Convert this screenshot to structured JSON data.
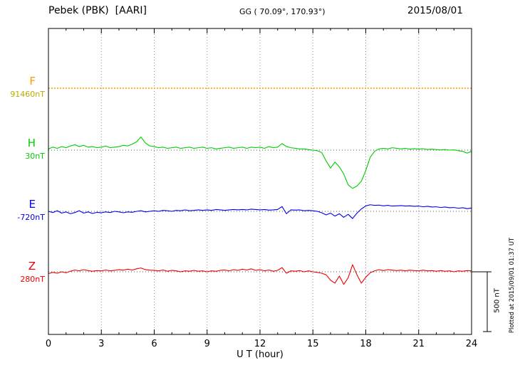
{
  "header": {
    "station": "Pebek (PBK)  [AARI]",
    "coords": "GG ( 70.09°, 170.93°)",
    "date": "2015/08/01"
  },
  "footer": {
    "xlabel": "U T (hour)",
    "scale_label": "500 nT",
    "plotted_at": "Plotted at 2015/09/01 01:37 UT"
  },
  "chart_data": {
    "type": "line",
    "title": "Pebek (PBK) [AARI] magnetogram 2015/08/01",
    "xlabel": "U T (hour)",
    "xlim": [
      0,
      24
    ],
    "x_ticks": [
      0,
      3,
      6,
      9,
      12,
      15,
      18,
      21,
      24
    ],
    "sample_step_hours": 0.25,
    "scale_bar_nT": 500,
    "grid": "dotted vertical lines every 3 hours, dotted horizontal baseline per component",
    "legend_position": "left margin component labels",
    "series": [
      {
        "name": "F",
        "baseline_label": "91460nT",
        "baseline_nT": 91460,
        "color": "#ff9900",
        "label_color": "#b9a800",
        "constant": true,
        "values_nT_offset": [
          0
        ]
      },
      {
        "name": "H",
        "baseline_label": "30nT",
        "baseline_nT": 30,
        "color": "#00cc00",
        "values_nT_offset": [
          10,
          25,
          15,
          30,
          20,
          35,
          45,
          30,
          40,
          25,
          30,
          20,
          25,
          35,
          20,
          25,
          30,
          40,
          35,
          50,
          70,
          110,
          60,
          35,
          30,
          20,
          25,
          15,
          20,
          25,
          15,
          20,
          25,
          15,
          20,
          25,
          15,
          20,
          10,
          15,
          20,
          25,
          15,
          20,
          25,
          15,
          25,
          20,
          25,
          15,
          30,
          20,
          25,
          55,
          30,
          20,
          15,
          10,
          10,
          5,
          0,
          -5,
          -20,
          -90,
          -150,
          -100,
          -140,
          -200,
          -290,
          -320,
          -300,
          -260,
          -170,
          -60,
          -10,
          10,
          15,
          10,
          20,
          15,
          10,
          15,
          8,
          12,
          8,
          12,
          5,
          8,
          5,
          2,
          5,
          0,
          2,
          -5,
          -10,
          -25,
          -10
        ]
      },
      {
        "name": "E",
        "baseline_label": "-720nT",
        "baseline_nT": -720,
        "color": "#0000ee",
        "values_nT_offset": [
          0,
          -10,
          5,
          -15,
          -5,
          -20,
          -10,
          5,
          -15,
          -5,
          -18,
          -8,
          -12,
          -5,
          -10,
          0,
          -5,
          -12,
          -5,
          -8,
          0,
          5,
          -5,
          0,
          5,
          0,
          8,
          5,
          0,
          8,
          5,
          12,
          5,
          8,
          12,
          8,
          12,
          8,
          15,
          12,
          8,
          12,
          15,
          12,
          15,
          12,
          18,
          15,
          12,
          15,
          10,
          12,
          15,
          40,
          -20,
          12,
          10,
          12,
          5,
          8,
          5,
          0,
          -12,
          -30,
          -15,
          -40,
          -20,
          -50,
          -25,
          -60,
          -15,
          20,
          45,
          55,
          50,
          52,
          46,
          50,
          44,
          46,
          48,
          44,
          46,
          42,
          44,
          38,
          42,
          36,
          38,
          32,
          36,
          30,
          32,
          26,
          30,
          22,
          28
        ]
      },
      {
        "name": "Z",
        "baseline_label": "280nT",
        "baseline_nT": 280,
        "color": "#ee0000",
        "values_nT_offset": [
          -15,
          -5,
          -12,
          0,
          -8,
          5,
          15,
          8,
          18,
          10,
          5,
          10,
          8,
          15,
          8,
          12,
          18,
          14,
          22,
          15,
          25,
          32,
          18,
          14,
          12,
          8,
          15,
          5,
          12,
          8,
          0,
          8,
          5,
          12,
          5,
          8,
          0,
          8,
          5,
          12,
          15,
          8,
          18,
          12,
          22,
          15,
          25,
          12,
          18,
          8,
          15,
          5,
          12,
          35,
          -12,
          8,
          5,
          10,
          0,
          8,
          0,
          -5,
          -12,
          -25,
          -70,
          -95,
          -35,
          -105,
          -50,
          60,
          -25,
          -95,
          -45,
          -8,
          8,
          18,
          10,
          18,
          14,
          10,
          14,
          8,
          14,
          10,
          8,
          14,
          8,
          10,
          5,
          10,
          5,
          8,
          0,
          8,
          5,
          10,
          8
        ]
      }
    ]
  }
}
